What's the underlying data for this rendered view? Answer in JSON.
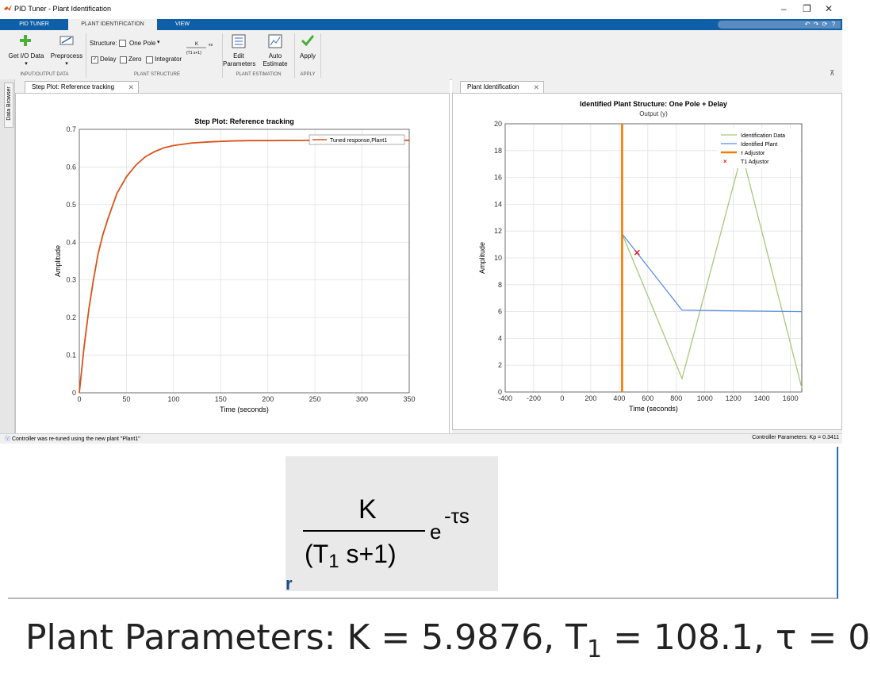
{
  "window": {
    "title": "PID Tuner - Plant Identification",
    "controls": [
      "–",
      "❐",
      "✕"
    ]
  },
  "ribbon_tabs": [
    "PID TUNER",
    "PLANT IDENTIFICATION",
    "VIEW"
  ],
  "toolstrip": {
    "get_io_data": "Get I/O Data",
    "preprocess": "Preprocess",
    "structure_label": "Structure:",
    "structure_value": "One Pole",
    "delay_label": "Delay",
    "delay_checked": true,
    "zero_label": "Zero",
    "integrator_label": "Integrator",
    "edit_parameters_1": "Edit",
    "edit_parameters_2": "Parameters",
    "auto_estimate_1": "Auto",
    "auto_estimate_2": "Estimate",
    "apply": "Apply",
    "sections": [
      "INPUT/OUTPUT DATA",
      "PLANT STRUCTURE",
      "PLANT ESTIMATION",
      "APPLY"
    ]
  },
  "side_strip": {
    "label": "Data Browser"
  },
  "left_tab": {
    "label": "Step Plot: Reference tracking",
    "close": "✕"
  },
  "right_tab": {
    "label": "Plant Identification",
    "close": "✕"
  },
  "formula": {
    "numerator": "K",
    "denominator": "(T1 s+1)",
    "denominator_left": "(T",
    "denominator_sub": "1",
    "denominator_right": " s+1)",
    "exponent": "-τs"
  },
  "status": {
    "left": "Controller was re-tuned using the new plant \"Plant1\"",
    "right": "Controller Parameters: Kp = 0.3411"
  },
  "zoom_formula_marker": "r",
  "plant_parameters": {
    "prefix": "Plant Parameters: K = 5.9876, T",
    "sub": "1",
    "suffix": " = 108.1, τ = 0"
  },
  "chart_data": [
    {
      "type": "line",
      "title": "Step Plot: Reference tracking",
      "xlabel": "Time (seconds)",
      "ylabel": "Amplitude",
      "xlim": [
        0,
        350
      ],
      "ylim": [
        0,
        0.7
      ],
      "xticks": [
        0,
        50,
        100,
        150,
        200,
        250,
        300,
        350
      ],
      "yticks": [
        0,
        0.1,
        0.2,
        0.3,
        0.4,
        0.5,
        0.6,
        0.7
      ],
      "grid": true,
      "legend_position": "top-right",
      "series": [
        {
          "name": "Tuned response,Plant1",
          "color": "#d95319",
          "x": [
            0,
            5,
            10,
            15,
            20,
            25,
            30,
            40,
            50,
            60,
            70,
            80,
            90,
            100,
            120,
            140,
            160,
            180,
            200,
            250,
            300,
            350
          ],
          "y": [
            0,
            0.12,
            0.22,
            0.3,
            0.37,
            0.42,
            0.46,
            0.53,
            0.574,
            0.605,
            0.627,
            0.641,
            0.651,
            0.657,
            0.664,
            0.667,
            0.669,
            0.67,
            0.67,
            0.671,
            0.671,
            0.671
          ]
        }
      ]
    },
    {
      "type": "line",
      "title": "Identified Plant Structure: One Pole + Delay",
      "subtitle": "Output (y)",
      "xlabel": "Time (seconds)",
      "ylabel": "Amplitude",
      "xlim": [
        -400,
        1680
      ],
      "ylim": [
        0,
        20
      ],
      "xticks": [
        -400,
        -200,
        0,
        200,
        400,
        600,
        800,
        1000,
        1200,
        1400,
        1600
      ],
      "yticks": [
        0,
        2,
        4,
        6,
        8,
        10,
        12,
        14,
        16,
        18,
        20
      ],
      "grid": true,
      "legend_position": "top-right",
      "series": [
        {
          "name": "Identification Data",
          "color": "#a8c87a",
          "x": [
            420,
            840,
            1260,
            1680
          ],
          "y": [
            11.8,
            1.0,
            17.8,
            0.3
          ]
        },
        {
          "name": "Identified Plant",
          "color": "#5b8fe6",
          "x": [
            420,
            840,
            1680
          ],
          "y": [
            11.8,
            6.1,
            6.0
          ]
        },
        {
          "name": "τ Adjustor",
          "color": "#f07c00",
          "x": [
            420,
            420
          ],
          "y": [
            0,
            20
          ]
        },
        {
          "name": "T1 Adjustor",
          "color": "#e8151b",
          "x": [
            525
          ],
          "y": [
            10.4
          ]
        }
      ]
    }
  ]
}
